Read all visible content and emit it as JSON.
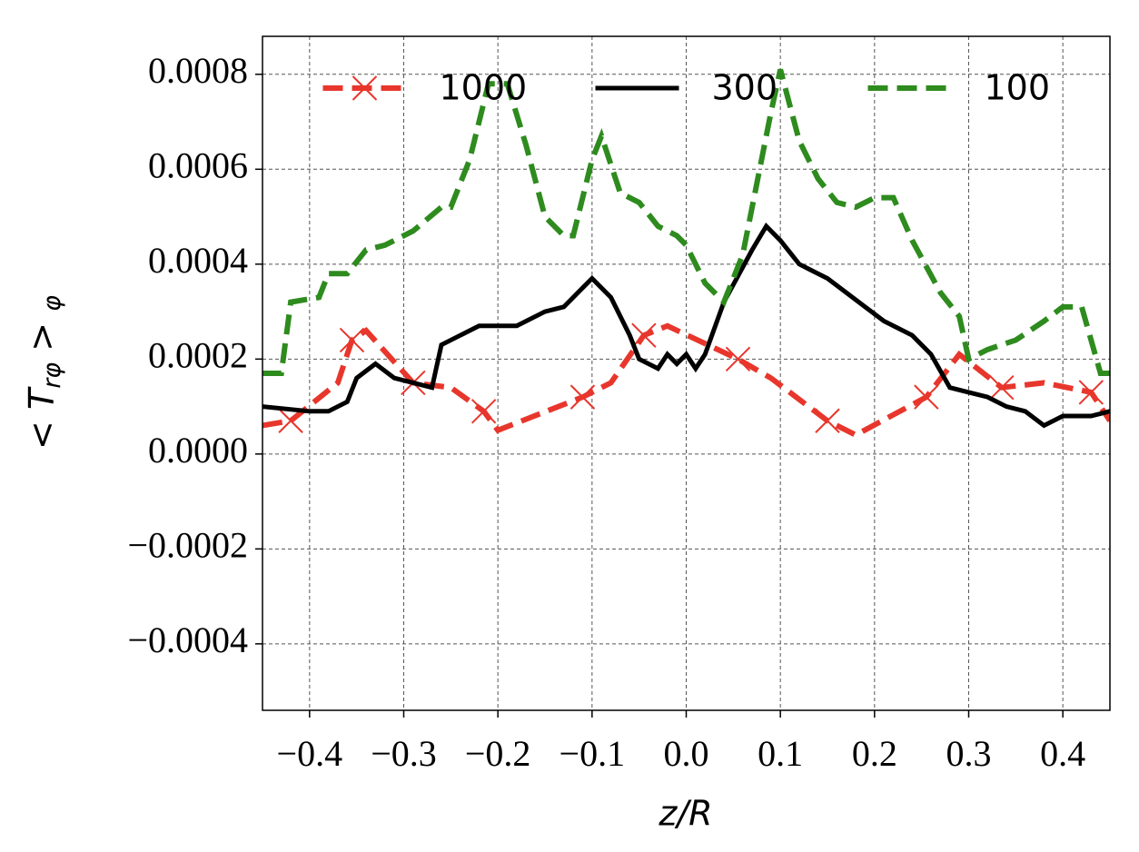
{
  "chart_data": {
    "type": "line",
    "xlabel": "z/R",
    "ylabel": "< T",
    "ylabel_sub": "rφ",
    "ylabel_tail": " > ",
    "ylabel_tail_sub": "φ",
    "xlim": [
      -0.45,
      0.45
    ],
    "ylim": [
      -0.00054,
      0.00088
    ],
    "xticks": [
      {
        "value": -0.4,
        "label": "−0.4"
      },
      {
        "value": -0.3,
        "label": "−0.3"
      },
      {
        "value": -0.2,
        "label": "−0.2"
      },
      {
        "value": -0.1,
        "label": "−0.1"
      },
      {
        "value": 0,
        "label": "0.0"
      },
      0.1,
      0.2,
      0.3,
      0.4
    ],
    "yticks": [
      {
        "value": -0.0004,
        "label": "−0.0004"
      },
      {
        "value": -0.0002,
        "label": "−0.0002"
      },
      {
        "value": 0,
        "label": "0.0000"
      },
      0.0002,
      0.0004,
      0.0006,
      0.0008
    ],
    "grid": true,
    "legend": "upper center",
    "series": [
      {
        "name": "1000",
        "color": "#e8362c",
        "dash": "dashed",
        "marker": "x",
        "marker_start": 1,
        "marker_every": 2,
        "x": [
          -0.45,
          -0.42,
          -0.37,
          -0.355,
          -0.34,
          -0.29,
          -0.25,
          -0.215,
          -0.2,
          -0.11,
          -0.08,
          -0.045,
          -0.02,
          0.055,
          0.09,
          0.15,
          0.18,
          0.255,
          0.29,
          0.335,
          0.38,
          0.43,
          0.45
        ],
        "values": [
          6e-05,
          7e-05,
          0.00015,
          0.00024,
          0.00026,
          0.00015,
          0.00014,
          9e-05,
          5e-05,
          0.00012,
          0.00015,
          0.00025,
          0.00027,
          0.0002,
          0.00016,
          7e-05,
          4e-05,
          0.00012,
          0.00021,
          0.00014,
          0.00015,
          0.00013,
          7e-05
        ]
      },
      {
        "name": "300",
        "color": "#000000",
        "dash": "solid",
        "x": [
          -0.45,
          -0.4,
          -0.38,
          -0.36,
          -0.35,
          -0.33,
          -0.31,
          -0.29,
          -0.27,
          -0.26,
          -0.24,
          -0.22,
          -0.18,
          -0.15,
          -0.13,
          -0.1,
          -0.08,
          -0.06,
          -0.05,
          -0.03,
          -0.02,
          -0.01,
          0,
          0.01,
          0.02,
          0.04,
          0.07,
          0.085,
          0.1,
          0.12,
          0.15,
          0.19,
          0.21,
          0.24,
          0.26,
          0.28,
          0.3,
          0.32,
          0.34,
          0.36,
          0.38,
          0.4,
          0.43,
          0.45
        ],
        "values": [
          0.0001,
          9e-05,
          9e-05,
          0.00011,
          0.00016,
          0.00019,
          0.00016,
          0.00015,
          0.00014,
          0.00023,
          0.00025,
          0.00027,
          0.00027,
          0.0003,
          0.00031,
          0.00037,
          0.00033,
          0.00025,
          0.0002,
          0.00018,
          0.00021,
          0.00019,
          0.00021,
          0.00018,
          0.00021,
          0.00032,
          0.00043,
          0.00048,
          0.00045,
          0.0004,
          0.00037,
          0.00031,
          0.00028,
          0.00025,
          0.00021,
          0.00014,
          0.00013,
          0.00012,
          0.0001,
          9e-05,
          6e-05,
          8e-05,
          8e-05,
          9e-05
        ]
      },
      {
        "name": "100",
        "color": "#2e8b1e",
        "dash": "dashed",
        "x": [
          -0.45,
          -0.43,
          -0.42,
          -0.39,
          -0.38,
          -0.36,
          -0.34,
          -0.32,
          -0.29,
          -0.26,
          -0.25,
          -0.23,
          -0.21,
          -0.19,
          -0.17,
          -0.15,
          -0.13,
          -0.12,
          -0.1,
          -0.09,
          -0.07,
          -0.05,
          -0.03,
          -0.01,
          0,
          0.02,
          0.04,
          0.06,
          0.09,
          0.1,
          0.12,
          0.14,
          0.16,
          0.18,
          0.2,
          0.22,
          0.24,
          0.27,
          0.29,
          0.3,
          0.32,
          0.35,
          0.38,
          0.4,
          0.42,
          0.44,
          0.45
        ],
        "values": [
          0.00017,
          0.00017,
          0.00032,
          0.00033,
          0.00038,
          0.00038,
          0.00043,
          0.00044,
          0.00047,
          0.00052,
          0.00052,
          0.00062,
          0.00078,
          0.00078,
          0.00065,
          0.0005,
          0.00046,
          0.00046,
          0.00062,
          0.00067,
          0.00055,
          0.00053,
          0.00048,
          0.00046,
          0.00044,
          0.00036,
          0.00032,
          0.00042,
          0.00072,
          0.00081,
          0.00066,
          0.00058,
          0.00053,
          0.00052,
          0.00054,
          0.00054,
          0.00045,
          0.00034,
          0.00029,
          0.0002,
          0.00022,
          0.00024,
          0.00028,
          0.00031,
          0.00031,
          0.00017,
          0.00017
        ]
      }
    ]
  }
}
